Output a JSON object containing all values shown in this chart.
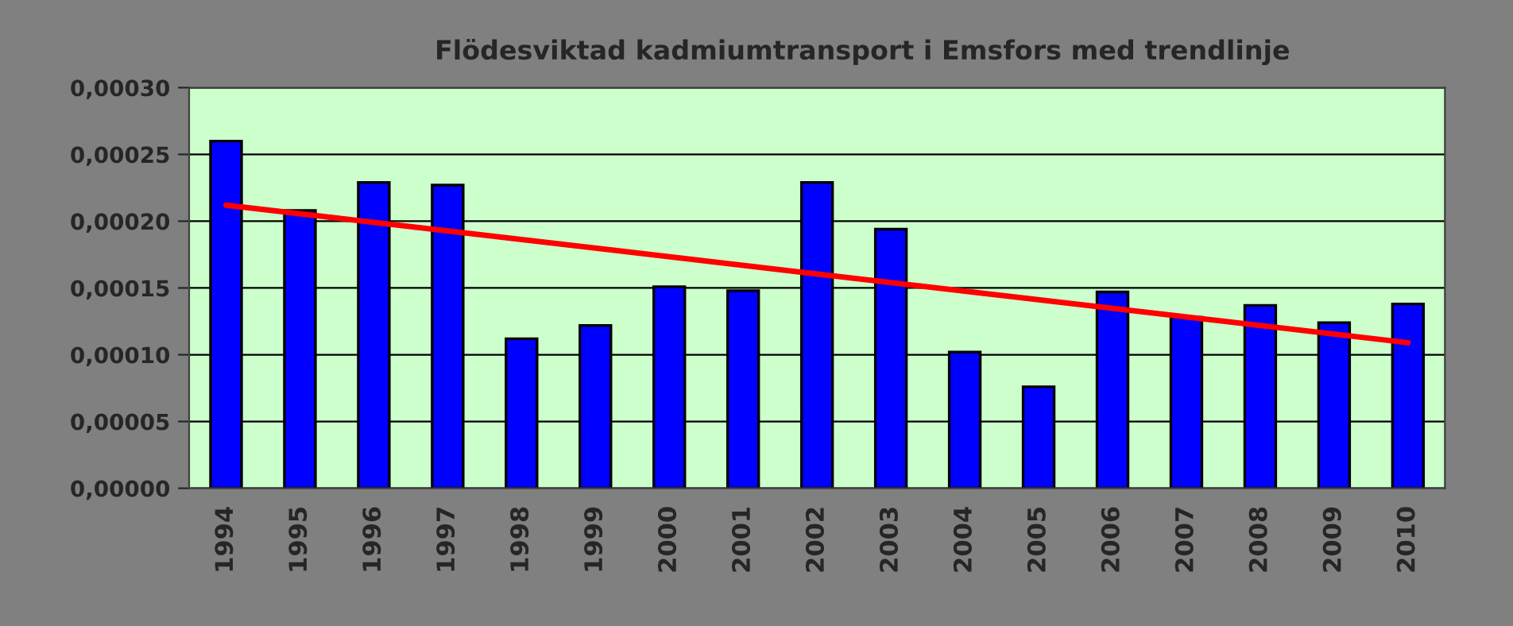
{
  "chart_data": {
    "type": "bar",
    "title": "Flödesviktad kadmiumtransport i Emsfors med trendlinje",
    "categories": [
      "1994",
      "1995",
      "1996",
      "1997",
      "1998",
      "1999",
      "2000",
      "2001",
      "2002",
      "2003",
      "2004",
      "2005",
      "2006",
      "2007",
      "2008",
      "2009",
      "2010"
    ],
    "series": [
      {
        "color": "#0000ff",
        "values": [
          0.00026,
          0.000208,
          0.000229,
          0.000227,
          0.000112,
          0.000122,
          0.000151,
          0.000148,
          0.000229,
          0.000194,
          0.000102,
          7.6e-05,
          0.000147,
          0.000128,
          0.000137,
          0.000124,
          0.000138
        ]
      },
      {
        "type": "line",
        "color": "#ff0000",
        "values": [
          0.000212,
          null,
          null,
          null,
          null,
          null,
          null,
          null,
          null,
          null,
          null,
          null,
          null,
          null,
          null,
          null,
          0.000109
        ]
      }
    ],
    "ylim": [
      0,
      0.0003
    ],
    "yticks": [
      {
        "value": 0,
        "label": "0,00000"
      },
      {
        "value": 5e-05,
        "label": "0,00005"
      },
      {
        "value": 0.0001,
        "label": "0,00010"
      },
      {
        "value": 0.00015,
        "label": "0,00015"
      },
      {
        "value": 0.0002,
        "label": "0,00020"
      },
      {
        "value": 0.00025,
        "label": "0,00025"
      },
      {
        "value": 0.0003,
        "label": "0,00030"
      }
    ],
    "grid": "y",
    "legend": false
  }
}
